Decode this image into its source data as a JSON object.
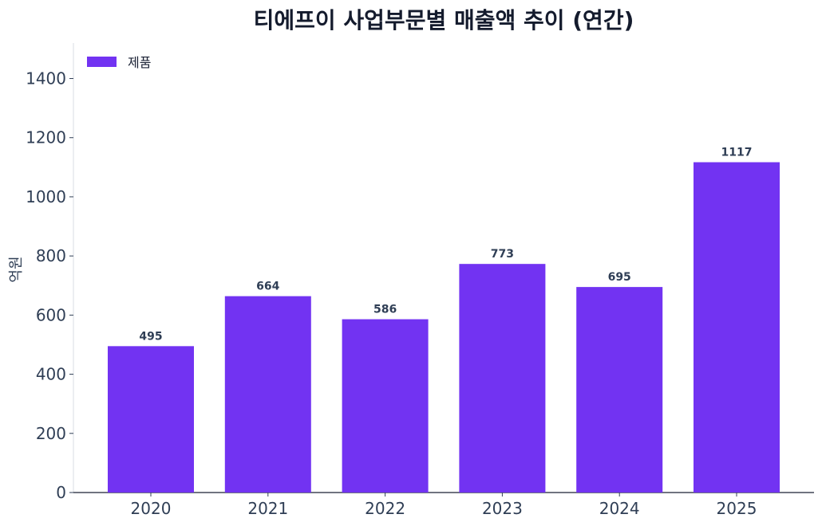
{
  "chart_data": {
    "type": "bar",
    "title": "티에프이 사업부문별 매출액 추이 (연간)",
    "xlabel": "",
    "ylabel": "억원",
    "categories": [
      "2020",
      "2021",
      "2022",
      "2023",
      "2024",
      "2025"
    ],
    "series": [
      {
        "name": "제품",
        "color": "#7233f2",
        "values": [
          495,
          664,
          586,
          773,
          695,
          1117
        ]
      }
    ],
    "yticks": [
      0,
      200,
      400,
      600,
      800,
      1000,
      1200,
      1400
    ],
    "ylim": [
      0,
      1520
    ],
    "grid": false,
    "legend_position": "top-left",
    "data_labels": true
  }
}
